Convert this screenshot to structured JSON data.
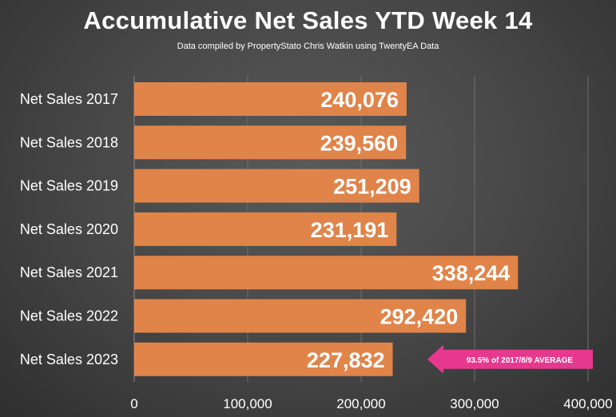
{
  "header": {
    "title": "Accumulative Net Sales YTD Week 14",
    "subtitle": "Data compiled by PropertyStato Chris Watkin using TwentyEA Data"
  },
  "colors": {
    "bar": "#e0844a",
    "grid": "#6e6e6e",
    "callout": "#e6388f"
  },
  "chart_data": {
    "type": "bar",
    "orientation": "horizontal",
    "categories": [
      "Net Sales 2017",
      "Net Sales 2018",
      "Net Sales 2019",
      "Net Sales 2020",
      "Net Sales 2021",
      "Net Sales 2022",
      "Net Sales 2023"
    ],
    "values": [
      240076,
      239560,
      251209,
      231191,
      338244,
      292420,
      227832
    ],
    "value_labels": [
      "240,076",
      "239,560",
      "251,209",
      "231,191",
      "338,244",
      "292,420",
      "227,832"
    ],
    "xlim": [
      0,
      400000
    ],
    "x_ticks": [
      0,
      100000,
      200000,
      300000,
      400000
    ],
    "x_tick_labels": [
      "0",
      "100,000",
      "200,000",
      "300,000",
      "400,000"
    ],
    "grid": true,
    "annotation": {
      "text": "93.5% of 2017/8/9 AVERAGE",
      "target_category": "Net Sales 2023"
    }
  }
}
